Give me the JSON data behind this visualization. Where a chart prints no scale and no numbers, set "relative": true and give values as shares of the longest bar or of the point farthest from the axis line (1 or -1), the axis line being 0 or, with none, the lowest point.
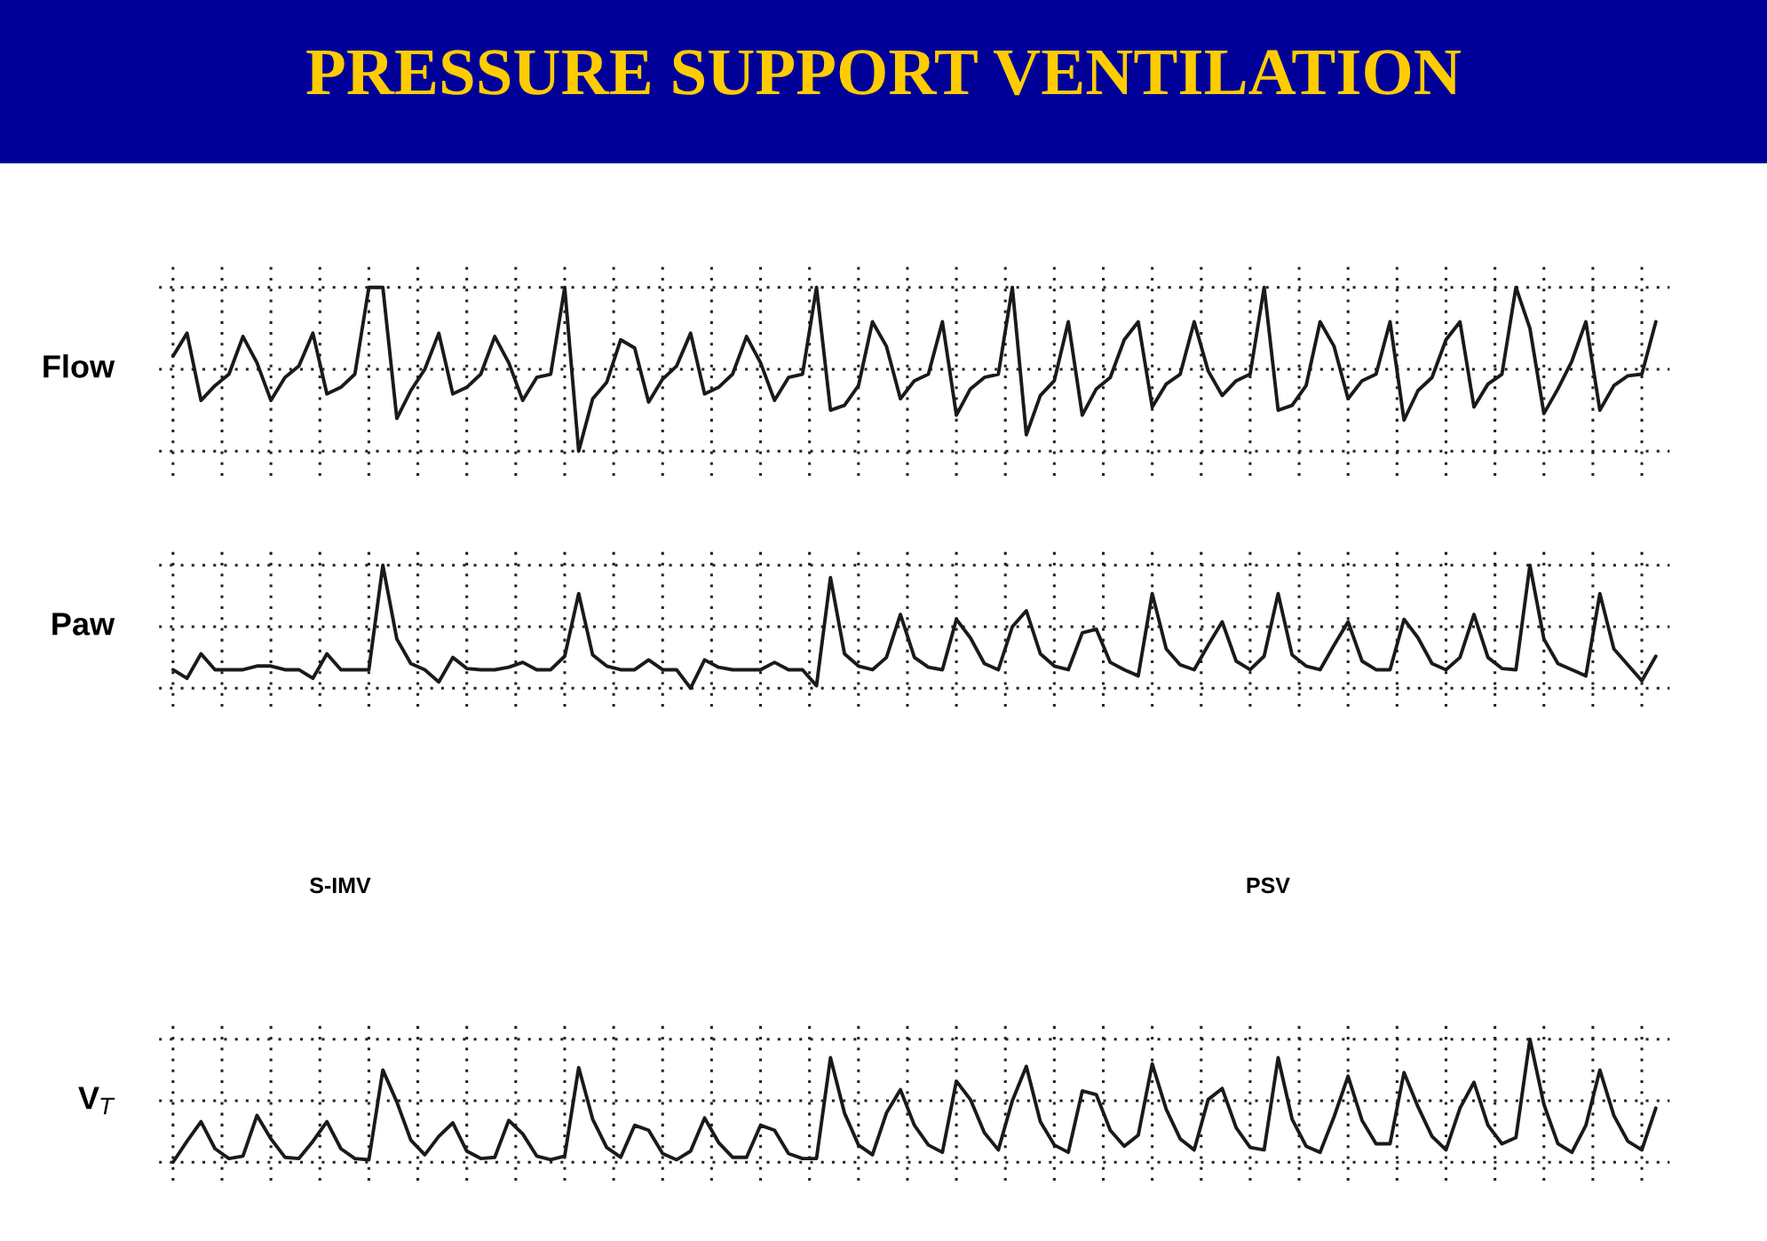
{
  "chart_data": [
    {
      "type": "line",
      "title": "PRESSURE SUPPORT VENTILATION",
      "ylabel": "Flow",
      "relative": true,
      "grid": true,
      "categories": [
        null,
        null,
        null,
        null,
        null,
        null,
        null,
        null,
        null,
        null,
        null,
        null,
        null,
        null,
        null,
        null,
        null,
        null,
        null,
        null,
        null,
        null,
        null,
        null,
        null,
        null,
        null,
        null,
        null,
        null,
        null,
        null,
        null,
        null,
        null,
        null,
        null,
        null,
        null,
        null,
        null,
        null,
        null,
        null,
        null,
        null,
        null,
        null,
        null,
        null,
        null,
        null,
        null,
        null,
        null,
        null,
        null,
        null,
        null,
        null,
        null,
        null,
        null,
        null,
        null,
        null,
        null,
        null,
        null,
        null,
        null,
        null,
        null,
        null,
        null,
        null,
        null,
        null,
        null,
        null,
        null,
        null,
        null,
        null,
        null,
        null,
        null,
        null,
        null,
        null,
        null,
        null,
        null,
        null,
        null,
        null,
        null,
        null,
        null,
        null,
        null,
        null,
        null,
        null,
        null,
        null,
        null
      ],
      "series": [
        {
          "color": "#1a1a1a",
          "values": [
            0.58,
            0.72,
            0.31,
            0.4,
            0.47,
            0.7,
            0.54,
            0.31,
            0.45,
            0.52,
            0.72,
            0.35,
            0.39,
            0.47,
            1.0,
            1.0,
            0.2,
            0.37,
            0.5,
            0.72,
            0.35,
            0.39,
            0.47,
            0.7,
            0.54,
            0.31,
            0.45,
            0.47,
            1.0,
            0.0,
            0.32,
            0.42,
            0.68,
            0.63,
            0.3,
            0.44,
            0.52,
            0.72,
            0.35,
            0.39,
            0.47,
            0.7,
            0.54,
            0.31,
            0.45,
            0.47,
            1.0,
            0.25,
            0.28,
            0.4,
            0.79,
            0.64,
            0.32,
            0.43,
            0.47,
            0.79,
            0.22,
            0.38,
            0.45,
            0.47,
            1.0,
            0.1,
            0.34,
            0.43,
            0.79,
            0.22,
            0.38,
            0.45,
            0.68,
            0.79,
            0.27,
            0.41,
            0.47,
            0.79,
            0.49,
            0.34,
            0.43,
            0.47,
            1.0,
            0.25,
            0.28,
            0.4,
            0.79,
            0.64,
            0.32,
            0.43,
            0.47,
            0.79,
            0.19,
            0.37,
            0.45,
            0.68,
            0.79,
            0.27,
            0.41,
            0.47,
            1.0,
            0.75,
            0.23,
            0.38,
            0.55,
            0.79,
            0.25,
            0.4,
            0.46,
            0.47,
            0.79
          ]
        }
      ]
    },
    {
      "type": "line",
      "ylabel": "Paw",
      "relative": true,
      "grid": true,
      "annotations": [
        "S-IMV",
        "PSV"
      ],
      "categories": [
        null,
        null,
        null,
        null,
        null,
        null,
        null,
        null,
        null,
        null,
        null,
        null,
        null,
        null,
        null,
        null,
        null,
        null,
        null,
        null,
        null,
        null,
        null,
        null,
        null,
        null,
        null,
        null,
        null,
        null,
        null,
        null,
        null,
        null,
        null,
        null,
        null,
        null,
        null,
        null,
        null,
        null,
        null,
        null,
        null,
        null,
        null,
        null,
        null,
        null,
        null,
        null,
        null,
        null,
        null,
        null,
        null,
        null,
        null,
        null,
        null,
        null,
        null,
        null,
        null,
        null,
        null,
        null,
        null,
        null,
        null,
        null,
        null,
        null,
        null,
        null,
        null,
        null,
        null,
        null,
        null,
        null,
        null,
        null,
        null,
        null,
        null,
        null,
        null,
        null,
        null,
        null,
        null,
        null,
        null,
        null,
        null,
        null,
        null,
        null,
        null,
        null,
        null,
        null,
        null,
        null,
        null
      ],
      "series": [
        {
          "color": "#1a1a1a",
          "values": [
            0.15,
            0.08,
            0.28,
            0.15,
            0.15,
            0.15,
            0.18,
            0.18,
            0.15,
            0.15,
            0.08,
            0.28,
            0.15,
            0.15,
            0.15,
            1.0,
            0.4,
            0.2,
            0.15,
            0.05,
            0.25,
            0.16,
            0.15,
            0.15,
            0.17,
            0.21,
            0.15,
            0.15,
            0.26,
            0.77,
            0.27,
            0.18,
            0.15,
            0.15,
            0.23,
            0.15,
            0.15,
            0.0,
            0.23,
            0.17,
            0.15,
            0.15,
            0.15,
            0.21,
            0.15,
            0.15,
            0.02,
            0.9,
            0.28,
            0.18,
            0.15,
            0.25,
            0.6,
            0.25,
            0.17,
            0.15,
            0.56,
            0.41,
            0.2,
            0.15,
            0.5,
            0.63,
            0.28,
            0.18,
            0.15,
            0.45,
            0.48,
            0.21,
            0.15,
            0.1,
            0.77,
            0.32,
            0.19,
            0.15,
            0.35,
            0.54,
            0.22,
            0.15,
            0.26,
            0.77,
            0.27,
            0.18,
            0.15,
            0.35,
            0.54,
            0.22,
            0.15,
            0.15,
            0.56,
            0.41,
            0.2,
            0.15,
            0.25,
            0.6,
            0.25,
            0.16,
            0.15,
            1.0,
            0.4,
            0.2,
            0.15,
            0.1,
            0.77,
            0.32,
            0.19,
            0.06,
            0.26
          ]
        }
      ]
    },
    {
      "type": "line",
      "ylabel": "V$_{T}$",
      "relative": true,
      "grid": true,
      "categories": [
        null,
        null,
        null,
        null,
        null,
        null,
        null,
        null,
        null,
        null,
        null,
        null,
        null,
        null,
        null,
        null,
        null,
        null,
        null,
        null,
        null,
        null,
        null,
        null,
        null,
        null,
        null,
        null,
        null,
        null,
        null,
        null,
        null,
        null,
        null,
        null,
        null,
        null,
        null,
        null,
        null,
        null,
        null,
        null,
        null,
        null,
        null,
        null,
        null,
        null,
        null,
        null,
        null,
        null,
        null,
        null,
        null,
        null,
        null,
        null,
        null,
        null,
        null,
        null,
        null,
        null,
        null,
        null,
        null,
        null,
        null,
        null,
        null,
        null,
        null,
        null,
        null,
        null,
        null,
        null,
        null,
        null,
        null,
        null,
        null,
        null,
        null,
        null,
        null,
        null,
        null,
        null,
        null,
        null,
        null,
        null,
        null,
        null,
        null,
        null,
        null,
        null,
        null,
        null,
        null,
        null,
        null
      ],
      "series": [
        {
          "color": "#1a1a1a",
          "values": [
            0.0,
            0.17,
            0.33,
            0.11,
            0.03,
            0.05,
            0.38,
            0.19,
            0.04,
            0.03,
            0.17,
            0.33,
            0.11,
            0.03,
            0.02,
            0.75,
            0.49,
            0.18,
            0.06,
            0.21,
            0.32,
            0.09,
            0.03,
            0.04,
            0.34,
            0.23,
            0.05,
            0.02,
            0.05,
            0.77,
            0.35,
            0.12,
            0.04,
            0.3,
            0.26,
            0.07,
            0.02,
            0.09,
            0.36,
            0.16,
            0.04,
            0.04,
            0.3,
            0.26,
            0.07,
            0.03,
            0.03,
            0.85,
            0.4,
            0.14,
            0.06,
            0.4,
            0.59,
            0.3,
            0.14,
            0.08,
            0.66,
            0.51,
            0.24,
            0.1,
            0.5,
            0.78,
            0.33,
            0.14,
            0.08,
            0.58,
            0.55,
            0.26,
            0.13,
            0.22,
            0.8,
            0.43,
            0.19,
            0.1,
            0.51,
            0.6,
            0.28,
            0.12,
            0.1,
            0.85,
            0.35,
            0.13,
            0.08,
            0.37,
            0.7,
            0.34,
            0.15,
            0.15,
            0.73,
            0.45,
            0.21,
            0.1,
            0.44,
            0.65,
            0.3,
            0.15,
            0.2,
            1.0,
            0.47,
            0.15,
            0.08,
            0.3,
            0.75,
            0.38,
            0.17,
            0.1,
            0.44
          ]
        }
      ]
    }
  ]
}
